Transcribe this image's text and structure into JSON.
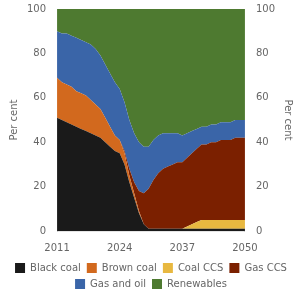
{
  "chart_data": {
    "type": "area",
    "stacked": true,
    "x": [
      2011,
      2012,
      2013,
      2014,
      2015,
      2016,
      2017,
      2018,
      2019,
      2020,
      2021,
      2022,
      2023,
      2024,
      2025,
      2026,
      2027,
      2028,
      2029,
      2030,
      2031,
      2032,
      2033,
      2034,
      2035,
      2036,
      2037,
      2038,
      2039,
      2040,
      2041,
      2042,
      2043,
      2044,
      2045,
      2046,
      2047,
      2048,
      2049,
      2050
    ],
    "series": [
      {
        "name": "Black coal",
        "color": "#1a1a1a",
        "values": [
          51,
          50,
          49,
          48,
          47,
          46,
          45,
          44,
          43,
          42,
          40,
          38,
          36,
          35,
          30,
          22,
          15,
          8,
          3,
          1,
          1,
          1,
          1,
          1,
          1,
          1,
          1,
          1,
          1,
          1,
          1,
          1,
          1,
          1,
          1,
          1,
          1,
          1,
          1,
          1
        ]
      },
      {
        "name": "Brown coal",
        "color": "#d2691e",
        "values": [
          18,
          17,
          17,
          17,
          16,
          16,
          16,
          15,
          14,
          13,
          11,
          9,
          7,
          6,
          5,
          3,
          2,
          1,
          0,
          0,
          0,
          0,
          0,
          0,
          0,
          0,
          0,
          0,
          0,
          0,
          0,
          0,
          0,
          0,
          0,
          0,
          0,
          0,
          0,
          0
        ]
      },
      {
        "name": "Coal CCS",
        "color": "#e8b840",
        "values": [
          0,
          0,
          0,
          0,
          0,
          0,
          0,
          0,
          0,
          0,
          0,
          0,
          0,
          0,
          0,
          0,
          0,
          0,
          0,
          0,
          0,
          0,
          0,
          0,
          0,
          0,
          0,
          1,
          2,
          3,
          4,
          4,
          4,
          4,
          4,
          4,
          4,
          4,
          4,
          4
        ]
      },
      {
        "name": "Gas CCS",
        "color": "#7b2000",
        "values": [
          0,
          0,
          0,
          0,
          0,
          0,
          0,
          0,
          0,
          0,
          0,
          0,
          0,
          0,
          1,
          3,
          5,
          9,
          14,
          18,
          22,
          25,
          27,
          28,
          29,
          30,
          30,
          31,
          32,
          33,
          34,
          34,
          35,
          35,
          36,
          36,
          36,
          37,
          37,
          37
        ]
      },
      {
        "name": "Gas and oil",
        "color": "#3a65a8",
        "values": [
          21,
          22,
          23,
          23,
          24,
          24,
          24,
          25,
          25,
          24,
          24,
          24,
          24,
          23,
          22,
          22,
          22,
          22,
          21,
          19,
          18,
          17,
          16,
          15,
          14,
          13,
          12,
          11,
          10,
          9,
          8,
          8,
          8,
          8,
          8,
          8,
          8,
          8,
          8,
          8
        ]
      },
      {
        "name": "Renewables",
        "color": "#4e7a30",
        "values": [
          10,
          11,
          11,
          12,
          13,
          14,
          15,
          16,
          18,
          21,
          25,
          29,
          33,
          36,
          42,
          50,
          56,
          60,
          62,
          62,
          59,
          57,
          56,
          56,
          56,
          56,
          57,
          56,
          55,
          54,
          53,
          53,
          52,
          52,
          51,
          51,
          51,
          50,
          50,
          50
        ]
      }
    ],
    "xlim": [
      2011,
      2050
    ],
    "xticks": [
      2011,
      2024,
      2037,
      2050
    ],
    "ylabel": "Per cent",
    "ylim": [
      0,
      100
    ],
    "yticks": [
      0,
      20,
      40,
      60,
      80,
      100
    ],
    "y2label": "Per cent",
    "y2lim": [
      0,
      100
    ],
    "y2ticks": [
      0,
      20,
      40,
      60,
      80,
      100
    ],
    "grid": false,
    "legend": "bottom"
  }
}
